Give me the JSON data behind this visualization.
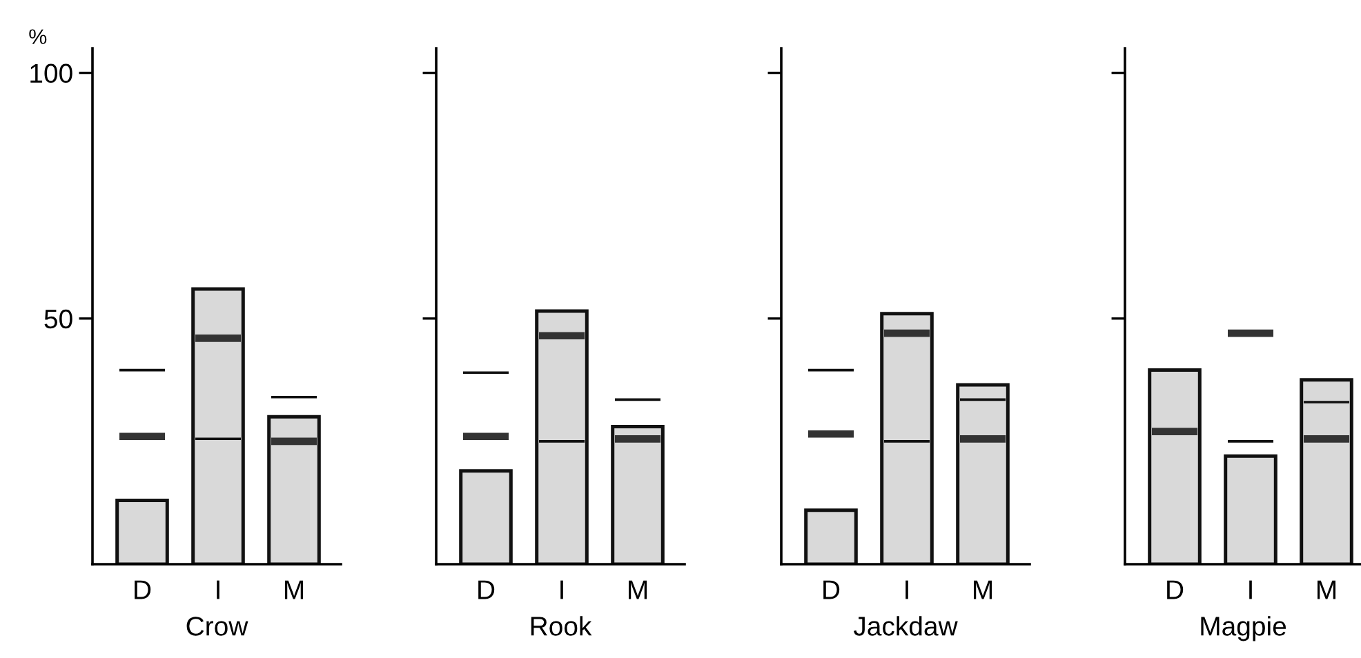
{
  "chart_data": [
    {
      "type": "bar",
      "xlabel": "Crow",
      "ylabel": "%",
      "categories": [
        "D",
        "I",
        "M"
      ],
      "ylim": [
        0,
        105
      ],
      "yticks": [
        50,
        100
      ],
      "grid": false,
      "series": [
        {
          "color": "#d9d9d9",
          "values": [
            13,
            56,
            30
          ]
        },
        {
          "color": "#111111",
          "base": [
            39.25,
            25.25,
            33.75
          ],
          "values": [
            0.5,
            0.5,
            0.5
          ]
        },
        {
          "color": "#333333",
          "base": [
            25.25,
            45.25,
            24.25
          ],
          "values": [
            1.5,
            1.5,
            1.5
          ]
        }
      ]
    },
    {
      "type": "bar",
      "xlabel": "Rook",
      "categories": [
        "D",
        "I",
        "M"
      ],
      "ylim": [
        0,
        105
      ],
      "yticks": [
        50,
        100
      ],
      "tick_labels": "x",
      "grid": false,
      "series": [
        {
          "color": "#d9d9d9",
          "values": [
            19,
            51.5,
            28
          ]
        },
        {
          "color": "#111111",
          "base": [
            38.75,
            24.75,
            33.25
          ],
          "values": [
            0.5,
            0.5,
            0.5
          ]
        },
        {
          "color": "#333333",
          "base": [
            25.25,
            45.75,
            24.75
          ],
          "values": [
            1.5,
            1.5,
            1.5
          ]
        }
      ]
    },
    {
      "type": "bar",
      "xlabel": "Jackdaw",
      "categories": [
        "D",
        "I",
        "M"
      ],
      "ylim": [
        0,
        105
      ],
      "yticks": [
        50,
        100
      ],
      "tick_labels": "x",
      "grid": false,
      "series": [
        {
          "color": "#d9d9d9",
          "values": [
            11,
            51,
            36.5
          ]
        },
        {
          "color": "#111111",
          "base": [
            39.25,
            24.75,
            33.25
          ],
          "values": [
            0.5,
            0.5,
            0.5
          ]
        },
        {
          "color": "#333333",
          "base": [
            25.75,
            46.25,
            24.75
          ],
          "values": [
            1.5,
            1.5,
            1.5
          ]
        }
      ]
    },
    {
      "type": "bar",
      "xlabel": "Magpie",
      "categories": [
        "D",
        "I",
        "M"
      ],
      "ylim": [
        0,
        105
      ],
      "yticks": [
        50,
        100
      ],
      "tick_labels": "x",
      "grid": false,
      "series": [
        {
          "color": "#d9d9d9",
          "values": [
            39.5,
            22,
            37.5
          ]
        },
        {
          "color": "#111111",
          "base": [
            null,
            24.75,
            32.75
          ],
          "values": [
            null,
            0.5,
            0.5
          ]
        },
        {
          "color": "#333333",
          "base": [
            26.25,
            46.25,
            24.75
          ],
          "values": [
            1.5,
            1.5,
            1.5
          ]
        }
      ]
    }
  ]
}
